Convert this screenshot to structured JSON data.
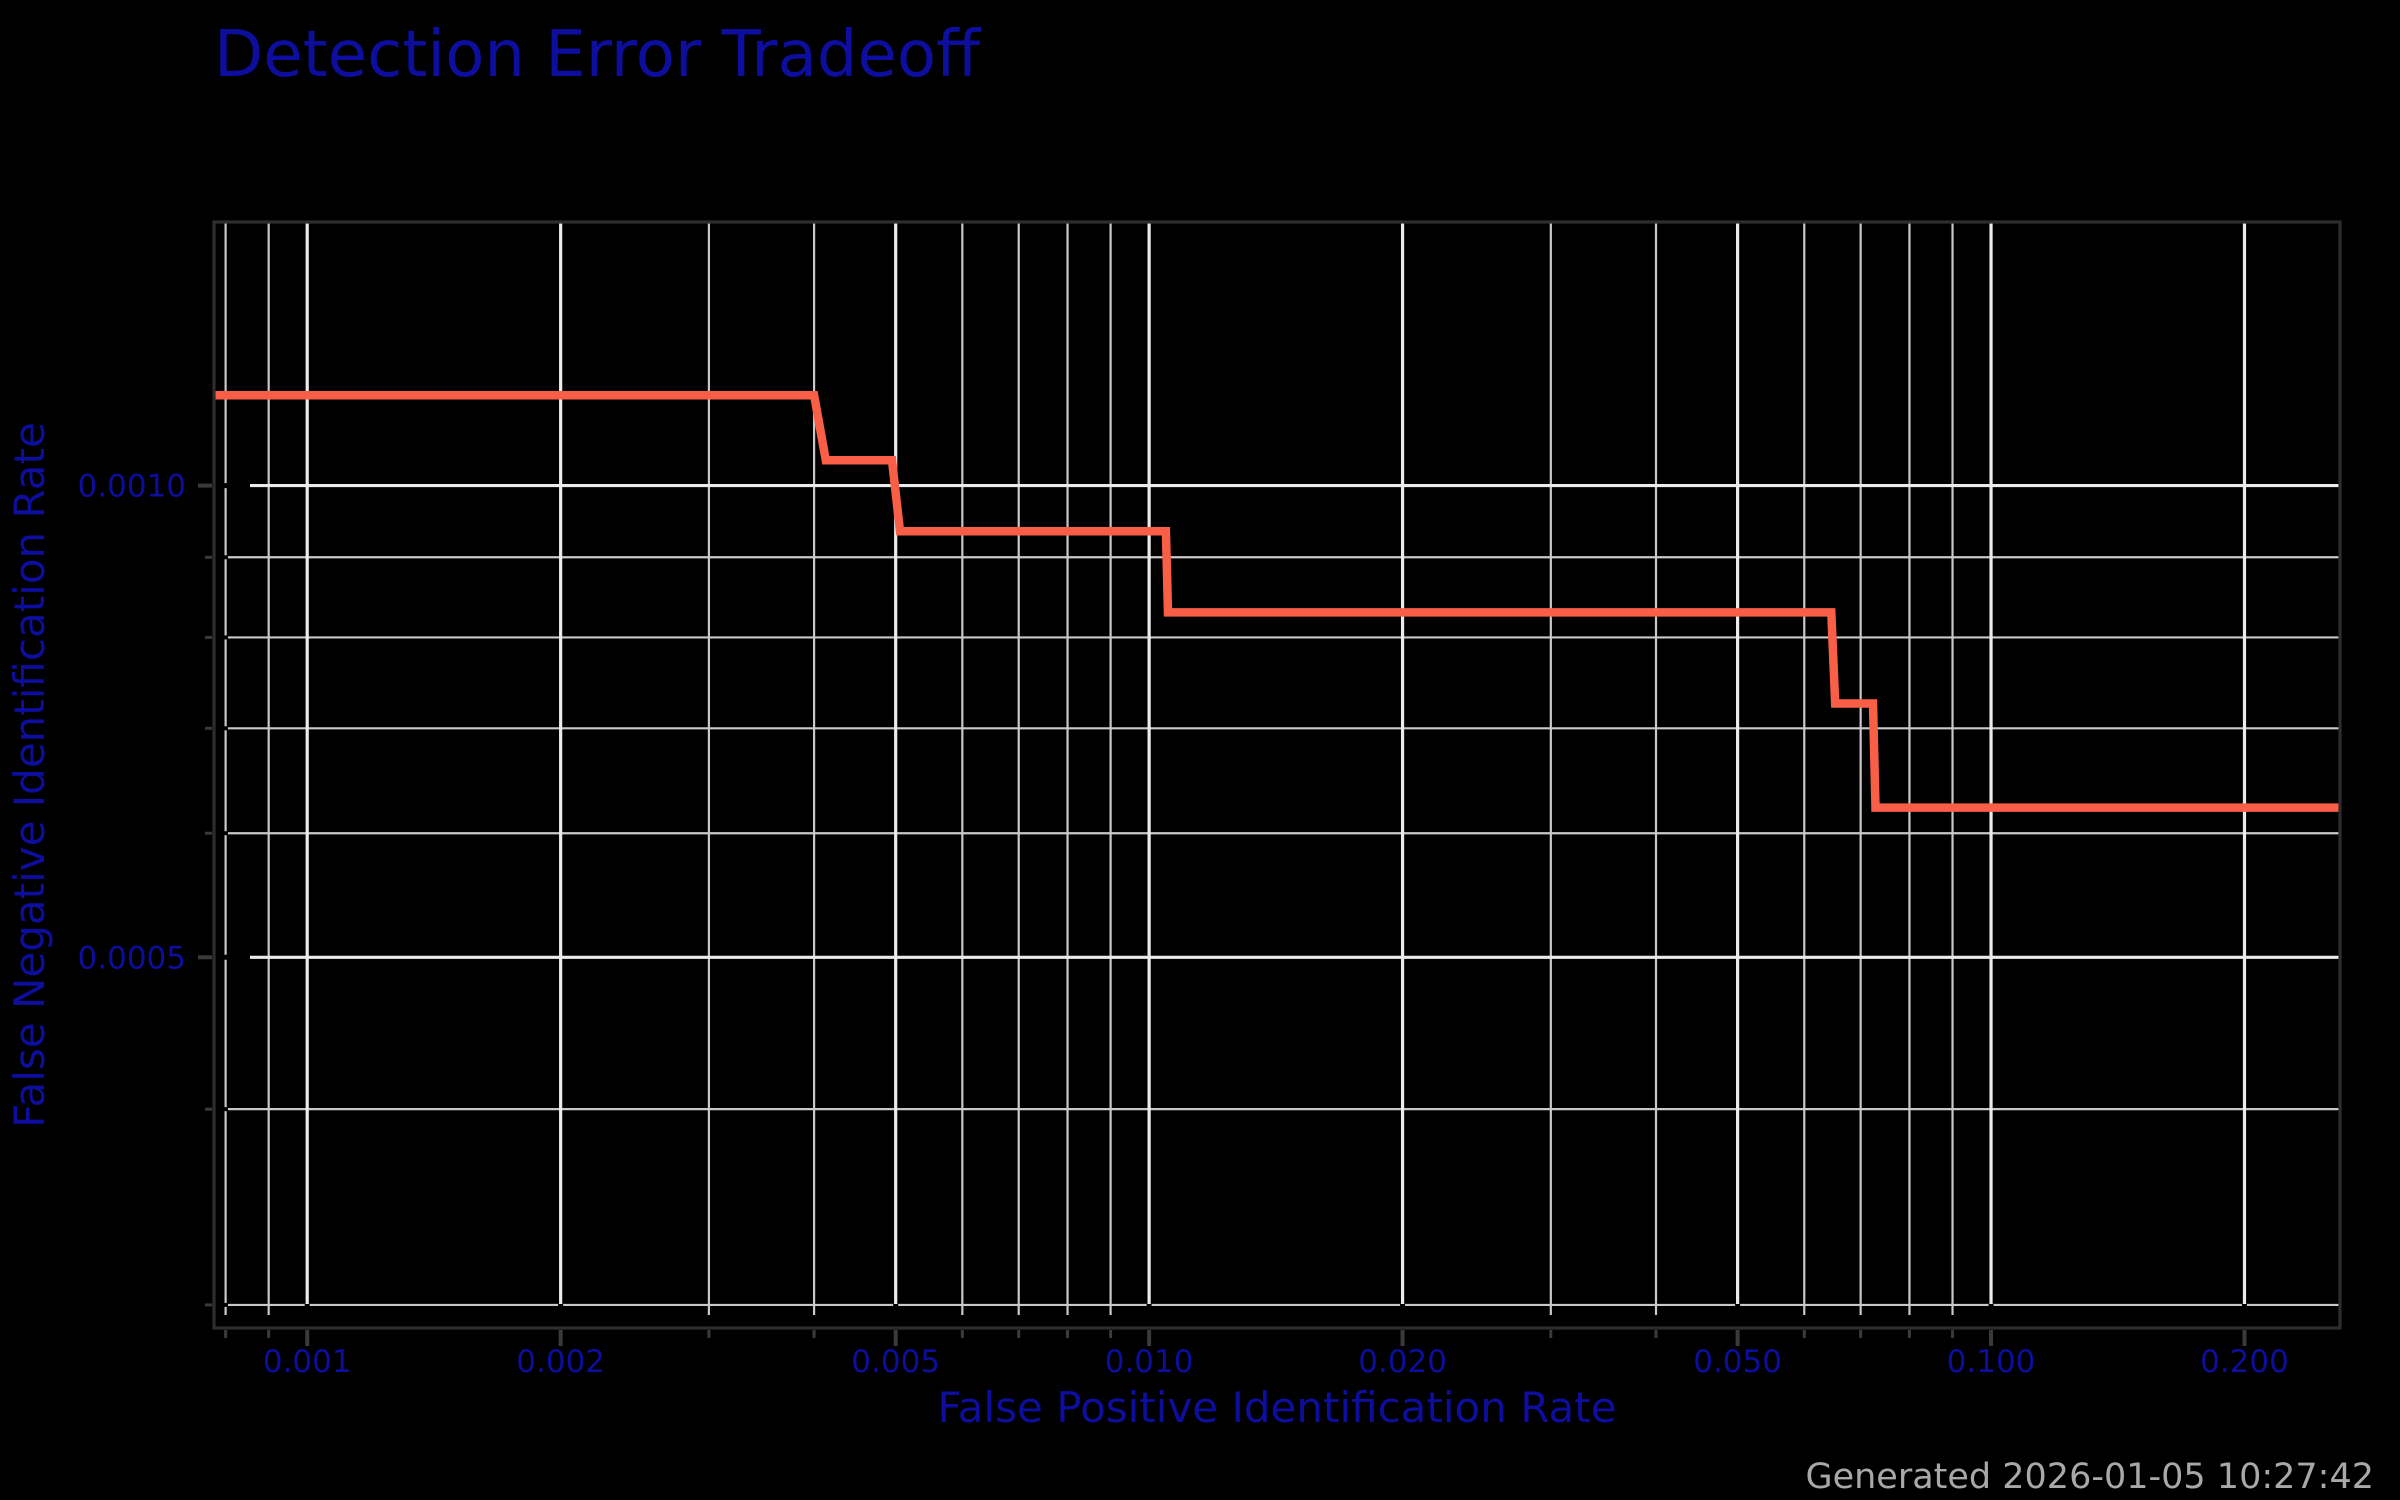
{
  "title": "Detection Error Tradeoff",
  "footer": {
    "generated_label": "Generated 2026-01-05 10:27:42"
  },
  "colors": {
    "background": "#000000",
    "text_blue": "#0d0d9e",
    "curve_red": "#f95f47",
    "grid_major": "#ebebeb",
    "grid_minor": "#c9c9c9",
    "spine": "#2d2d2d",
    "tick": "#3a3a3a",
    "footer_gray": "#a8a8a8"
  },
  "chart_data": {
    "type": "line",
    "subtype": "DET step curve",
    "title": "Detection Error Tradeoff",
    "xlabel": "False Positive Identification Rate",
    "ylabel": "False Negative Identification Rate",
    "x_scale": "log",
    "y_scale": "log",
    "xlim": [
      0.000775,
      0.2597
    ],
    "ylim": [
      0.00029,
      0.001473
    ],
    "grid": "both",
    "legend": null,
    "x_major_ticks": [
      0.001,
      0.002,
      0.005,
      0.01,
      0.02,
      0.05,
      0.1,
      0.2
    ],
    "x_major_tick_labels": [
      "0.001",
      "0.002",
      "0.005",
      "0.010",
      "0.020",
      "0.050",
      "0.100",
      "0.200"
    ],
    "x_minor_ticks": [
      0.0008,
      0.0009,
      0.003,
      0.004,
      0.006,
      0.007,
      0.008,
      0.009,
      0.03,
      0.04,
      0.06,
      0.07,
      0.08,
      0.09
    ],
    "y_major_ticks": [
      0.0005,
      0.001
    ],
    "y_major_tick_labels": [
      "0.0005",
      "0.0010"
    ],
    "y_minor_ticks": [
      0.0003,
      0.0004,
      0.0006,
      0.0007,
      0.0008,
      0.0009
    ],
    "series": [
      {
        "name": "DET curve",
        "color": "#f95f47",
        "points": [
          [
            0.000775,
            0.001142
          ],
          [
            0.004,
            0.001142
          ],
          [
            0.00413,
            0.001038
          ],
          [
            0.00495,
            0.001038
          ],
          [
            0.00506,
            0.000935
          ],
          [
            0.01047,
            0.000935
          ],
          [
            0.01053,
            0.00083
          ],
          [
            0.0646,
            0.00083
          ],
          [
            0.0653,
            0.000726
          ],
          [
            0.0724,
            0.000726
          ],
          [
            0.0729,
            0.000623
          ],
          [
            0.2597,
            0.000623
          ]
        ]
      }
    ]
  }
}
